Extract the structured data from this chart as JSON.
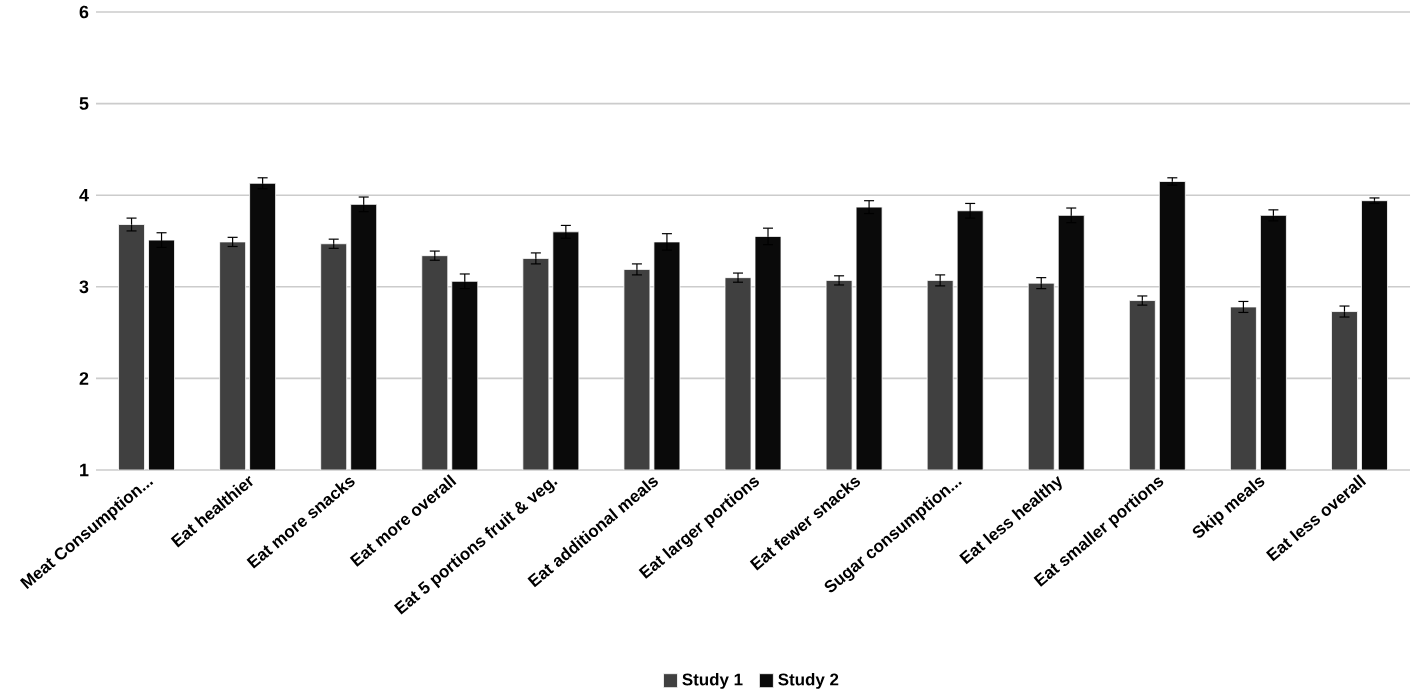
{
  "chart_data": {
    "type": "bar",
    "categories": [
      "Meat Consumption...",
      "Eat healthier",
      "Eat more snacks",
      "Eat more overall",
      "Eat 5 portions fruit & veg.",
      "Eat additional meals",
      "Eat larger portions",
      "Eat fewer snacks",
      "Sugar consumption...",
      "Eat less healthy",
      "Eat smaller portions",
      "Skip meals",
      "Eat less overall"
    ],
    "series": [
      {
        "name": "Study 1",
        "color": "#404040",
        "values": [
          3.68,
          3.49,
          3.47,
          3.34,
          3.31,
          3.19,
          3.1,
          3.07,
          3.07,
          3.04,
          2.85,
          2.78,
          2.73
        ],
        "errors": [
          0.07,
          0.05,
          0.05,
          0.05,
          0.06,
          0.06,
          0.05,
          0.05,
          0.06,
          0.06,
          0.05,
          0.06,
          0.06
        ]
      },
      {
        "name": "Study 2",
        "color": "#0a0a0a",
        "values": [
          3.51,
          4.13,
          3.9,
          3.06,
          3.6,
          3.49,
          3.55,
          3.87,
          3.83,
          3.78,
          4.15,
          3.78,
          3.94
        ],
        "errors": [
          0.08,
          0.06,
          0.08,
          0.08,
          0.07,
          0.09,
          0.09,
          0.07,
          0.08,
          0.08,
          0.04,
          0.06,
          0.03
        ]
      }
    ],
    "ylim": [
      1,
      6
    ],
    "yticks": [
      1,
      2,
      3,
      4,
      5,
      6
    ],
    "grid": "y",
    "legend": "bottom"
  }
}
